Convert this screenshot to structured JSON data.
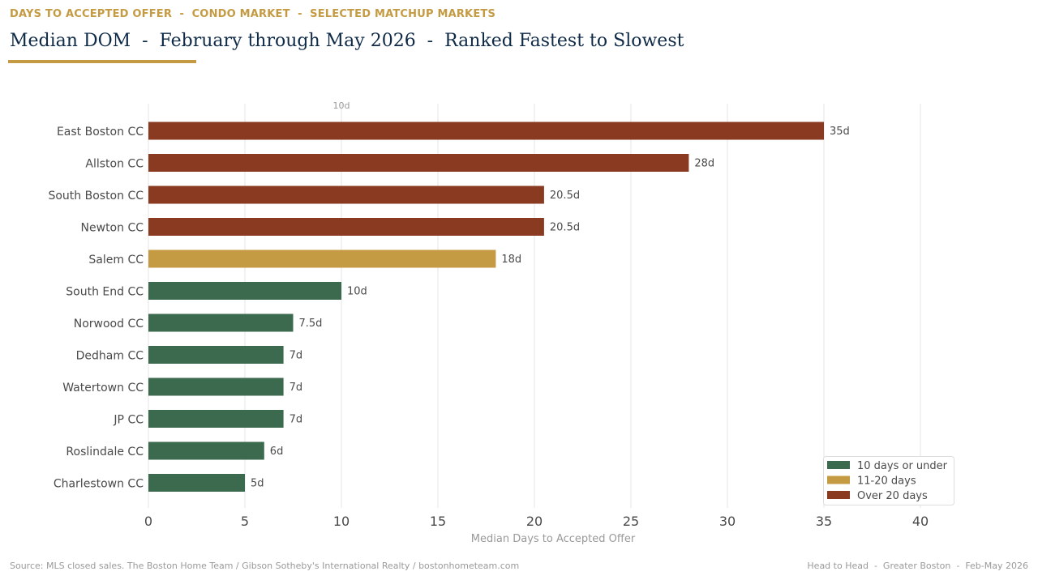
{
  "header": {
    "eyebrow": "DAYS TO ACCEPTED OFFER  -  CONDO MARKET  -  SELECTED MATCHUP MARKETS",
    "title": "Median DOM  -  February through May 2026  -  Ranked Fastest to Slowest"
  },
  "chart_data": {
    "type": "bar",
    "orientation": "horizontal",
    "categories": [
      "East Boston CC",
      "Allston CC",
      "South Boston CC",
      "Newton CC",
      "Salem CC",
      "South End CC",
      "Norwood CC",
      "Dedham CC",
      "Watertown CC",
      "JP CC",
      "Roslindale CC",
      "Charlestown CC"
    ],
    "values": [
      35,
      28,
      20.5,
      20.5,
      18,
      10,
      7.5,
      7,
      7,
      7,
      6,
      5
    ],
    "value_labels": [
      "35d",
      "28d",
      "20.5d",
      "20.5d",
      "18d",
      "10d",
      "7.5d",
      "7d",
      "7d",
      "7d",
      "6d",
      "5d"
    ],
    "bar_groups": [
      "over20",
      "over20",
      "over20",
      "over20",
      "mid",
      "under10",
      "under10",
      "under10",
      "under10",
      "under10",
      "under10",
      "under10"
    ],
    "xlabel": "Median Days to Accepted Offer",
    "xlim": [
      0,
      40
    ],
    "xticks": [
      0,
      5,
      10,
      15,
      20,
      25,
      30,
      35,
      40
    ],
    "reference_line": {
      "value": 10,
      "label": "10d"
    },
    "grid": true,
    "legend": {
      "placement": "bottom-right",
      "items": [
        {
          "key": "under10",
          "label": "10 days or under",
          "color": "#3B6A4E"
        },
        {
          "key": "mid",
          "label": "11-20 days",
          "color": "#C49A42"
        },
        {
          "key": "over20",
          "label": "Over 20 days",
          "color": "#8A3A21"
        }
      ]
    }
  },
  "footer": {
    "source": "Source: MLS closed sales. The Boston Home Team / Gibson Sotheby's International Realty / bostonhometeam.com",
    "right": "Head to Head  -  Greater Boston  -  Feb-May 2026"
  }
}
